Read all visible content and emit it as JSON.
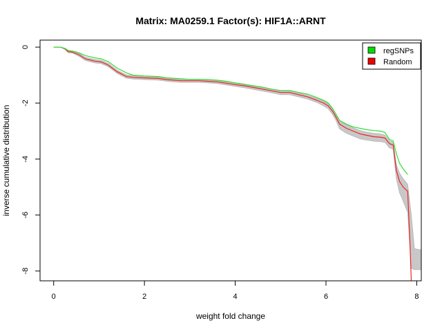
{
  "chart_data": {
    "type": "line",
    "title": "Matrix: MA0259.1 Factor(s): HIF1A::ARNT",
    "xlabel": "weight fold change",
    "ylabel": "inverse cumulative distribution",
    "xlim": [
      -0.3,
      8.1
    ],
    "ylim": [
      -8.35,
      0.25
    ],
    "x_ticks": [
      0,
      2,
      4,
      6,
      8
    ],
    "y_ticks": [
      0,
      -2,
      -4,
      -6,
      -8
    ],
    "grid": false,
    "legend_position": "top-right",
    "legend": [
      {
        "label": "regSNPs",
        "color": "#00dd00"
      },
      {
        "label": "Random",
        "color": "#ee0000"
      }
    ],
    "series": [
      {
        "name": "regSNPs",
        "color": "#33dd33",
        "x": [
          0.0,
          0.15,
          0.25,
          0.32,
          0.42,
          0.55,
          0.7,
          0.9,
          1.05,
          1.2,
          1.4,
          1.6,
          1.75,
          2.0,
          2.3,
          2.5,
          2.8,
          3.0,
          3.2,
          3.4,
          3.6,
          3.8,
          4.0,
          4.2,
          4.4,
          4.6,
          4.8,
          5.0,
          5.2,
          5.4,
          5.6,
          5.8,
          5.95,
          6.05,
          6.15,
          6.22,
          6.3,
          6.45,
          6.6,
          6.75,
          6.9,
          7.05,
          7.2,
          7.3,
          7.4,
          7.48,
          7.55,
          7.62,
          7.7,
          7.8
        ],
        "y": [
          0.0,
          0.0,
          -0.05,
          -0.12,
          -0.14,
          -0.2,
          -0.3,
          -0.38,
          -0.42,
          -0.52,
          -0.75,
          -0.92,
          -1.0,
          -1.03,
          -1.05,
          -1.1,
          -1.13,
          -1.15,
          -1.15,
          -1.16,
          -1.18,
          -1.22,
          -1.28,
          -1.33,
          -1.38,
          -1.43,
          -1.5,
          -1.55,
          -1.55,
          -1.62,
          -1.68,
          -1.8,
          -1.9,
          -2.0,
          -2.2,
          -2.4,
          -2.62,
          -2.75,
          -2.85,
          -2.9,
          -2.95,
          -2.98,
          -3.0,
          -3.05,
          -3.3,
          -3.35,
          -3.8,
          -4.15,
          -4.35,
          -4.55
        ]
      },
      {
        "name": "Random",
        "color": "#ee2222",
        "x": [
          0.0,
          0.15,
          0.25,
          0.32,
          0.42,
          0.55,
          0.7,
          0.9,
          1.05,
          1.2,
          1.4,
          1.6,
          1.75,
          2.0,
          2.3,
          2.5,
          2.8,
          3.0,
          3.2,
          3.4,
          3.6,
          3.8,
          4.0,
          4.2,
          4.4,
          4.6,
          4.8,
          5.0,
          5.2,
          5.4,
          5.6,
          5.8,
          5.95,
          6.05,
          6.15,
          6.22,
          6.3,
          6.45,
          6.6,
          6.75,
          6.9,
          7.05,
          7.2,
          7.3,
          7.4,
          7.48,
          7.55,
          7.62,
          7.7,
          7.8,
          7.85,
          7.88
        ],
        "y": [
          0.0,
          0.0,
          -0.06,
          -0.16,
          -0.18,
          -0.27,
          -0.42,
          -0.5,
          -0.53,
          -0.64,
          -0.88,
          -1.05,
          -1.08,
          -1.1,
          -1.12,
          -1.16,
          -1.2,
          -1.2,
          -1.2,
          -1.22,
          -1.24,
          -1.29,
          -1.34,
          -1.38,
          -1.44,
          -1.5,
          -1.56,
          -1.62,
          -1.62,
          -1.7,
          -1.78,
          -1.9,
          -2.0,
          -2.1,
          -2.3,
          -2.5,
          -2.75,
          -2.9,
          -3.0,
          -3.1,
          -3.15,
          -3.2,
          -3.22,
          -3.25,
          -3.45,
          -3.5,
          -4.4,
          -4.8,
          -5.0,
          -5.15,
          -7.0,
          -8.35
        ]
      }
    ],
    "band": {
      "name": "Random range",
      "color": "#c8c8c8",
      "x": [
        0.0,
        0.15,
        0.25,
        0.32,
        0.42,
        0.55,
        0.7,
        0.9,
        1.05,
        1.2,
        1.4,
        1.6,
        1.75,
        2.0,
        2.3,
        2.5,
        2.8,
        3.0,
        3.2,
        3.4,
        3.6,
        3.8,
        4.0,
        4.2,
        4.4,
        4.6,
        4.8,
        5.0,
        5.2,
        5.4,
        5.6,
        5.8,
        5.95,
        6.05,
        6.15,
        6.22,
        6.3,
        6.45,
        6.6,
        6.75,
        6.9,
        7.05,
        7.2,
        7.3,
        7.4,
        7.48,
        7.55,
        7.62,
        7.7,
        7.8,
        7.88,
        7.95,
        8.1
      ],
      "upper": [
        0.0,
        0.0,
        -0.04,
        -0.12,
        -0.14,
        -0.22,
        -0.36,
        -0.44,
        -0.47,
        -0.58,
        -0.82,
        -0.99,
        -1.02,
        -1.05,
        -1.07,
        -1.11,
        -1.15,
        -1.15,
        -1.15,
        -1.17,
        -1.19,
        -1.24,
        -1.28,
        -1.32,
        -1.38,
        -1.44,
        -1.5,
        -1.56,
        -1.56,
        -1.64,
        -1.72,
        -1.83,
        -1.92,
        -2.02,
        -2.2,
        -2.4,
        -2.62,
        -2.78,
        -2.88,
        -2.98,
        -3.04,
        -3.08,
        -3.1,
        -3.14,
        -3.35,
        -3.4,
        -4.2,
        -4.5,
        -4.7,
        -4.9,
        -6.0,
        -7.2,
        -7.25
      ],
      "lower": [
        0.0,
        0.0,
        -0.08,
        -0.2,
        -0.22,
        -0.32,
        -0.48,
        -0.56,
        -0.59,
        -0.7,
        -0.94,
        -1.11,
        -1.14,
        -1.16,
        -1.18,
        -1.22,
        -1.26,
        -1.26,
        -1.26,
        -1.28,
        -1.3,
        -1.35,
        -1.4,
        -1.45,
        -1.51,
        -1.57,
        -1.63,
        -1.7,
        -1.7,
        -1.78,
        -1.86,
        -1.98,
        -2.1,
        -2.2,
        -2.42,
        -2.62,
        -2.92,
        -3.08,
        -3.18,
        -3.28,
        -3.32,
        -3.36,
        -3.38,
        -3.4,
        -3.6,
        -3.65,
        -4.7,
        -5.2,
        -5.5,
        -5.9,
        -7.9,
        -7.95,
        -7.95
      ]
    }
  }
}
